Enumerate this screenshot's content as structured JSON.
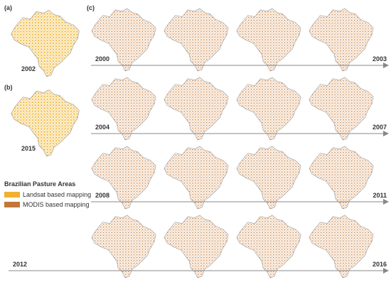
{
  "panels": [
    {
      "label": "(a)",
      "year": "2002"
    },
    {
      "label": "(b)",
      "year": "2015"
    }
  ],
  "legend": {
    "title": "Brazilian Pasture Areas",
    "items": [
      {
        "label": "Landsat based mapping",
        "color": "#f0b030"
      },
      {
        "label": "MODIS based mapping",
        "color": "#c0783a"
      }
    ]
  },
  "panel_c": {
    "label": "(c)",
    "rows": [
      {
        "start": "2000",
        "end": "2003"
      },
      {
        "start": "2004",
        "end": "2007"
      },
      {
        "start": "2008",
        "end": "2011"
      },
      {
        "start": "2012",
        "end": "2016"
      }
    ]
  }
}
